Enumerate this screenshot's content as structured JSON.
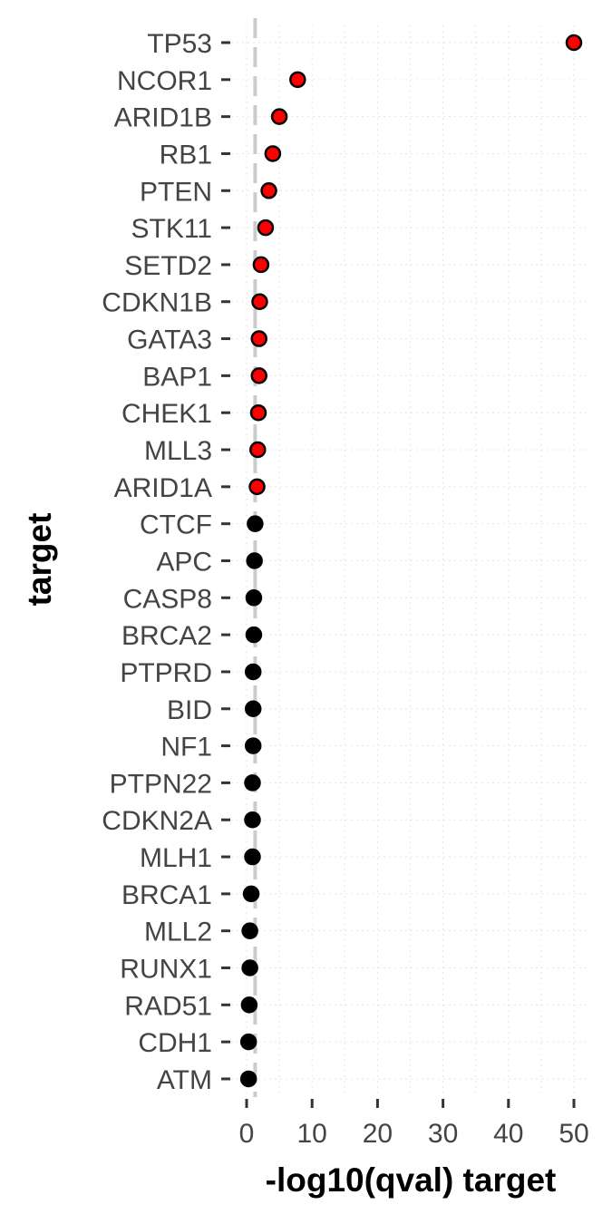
{
  "chart_data": {
    "type": "scatter",
    "xlabel": "-log10(qval) target",
    "ylabel": "target",
    "xlim": [
      -1.5,
      51.5
    ],
    "x_ticks": [
      0,
      10,
      20,
      30,
      40,
      50
    ],
    "x_tick_labels": [
      "0",
      "10",
      "20",
      "30",
      "40",
      "50"
    ],
    "threshold_line_x": 1.3,
    "grid": true,
    "categories": [
      "TP53",
      "NCOR1",
      "ARID1B",
      "RB1",
      "PTEN",
      "STK11",
      "SETD2",
      "CDKN1B",
      "GATA3",
      "BAP1",
      "CHEK1",
      "MLL3",
      "ARID1A",
      "CTCF",
      "APC",
      "CASP8",
      "BRCA2",
      "PTPRD",
      "BID",
      "NF1",
      "PTPN22",
      "CDKN2A",
      "MLH1",
      "BRCA1",
      "MLL2",
      "RUNX1",
      "RAD51",
      "CDH1",
      "ATM"
    ],
    "values": [
      50,
      7.8,
      5.0,
      4.0,
      3.4,
      2.9,
      2.2,
      2.0,
      1.9,
      1.9,
      1.8,
      1.7,
      1.6,
      1.3,
      1.2,
      1.1,
      1.1,
      1.0,
      1.0,
      1.0,
      0.9,
      0.9,
      0.9,
      0.7,
      0.5,
      0.5,
      0.4,
      0.3,
      0.3
    ],
    "significant": [
      true,
      true,
      true,
      true,
      true,
      true,
      true,
      true,
      true,
      true,
      true,
      true,
      true,
      false,
      false,
      false,
      false,
      false,
      false,
      false,
      false,
      false,
      false,
      false,
      false,
      false,
      false,
      false,
      false
    ],
    "colors": {
      "significant": "#ff0000",
      "not_significant": "#000000",
      "point_outline": "#000000",
      "threshold_line": "#cccccc",
      "grid": "#e6e6e6",
      "tick_mark": "#333333"
    }
  }
}
